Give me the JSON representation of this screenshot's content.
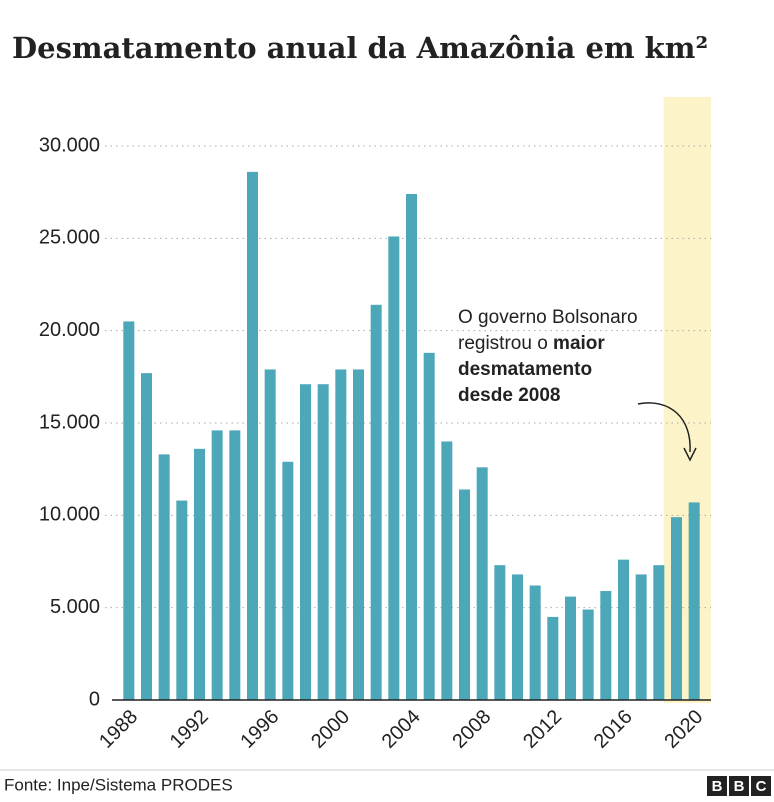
{
  "chart_data": {
    "type": "bar",
    "title": "Desmatamento anual da Amazônia em km²",
    "categories": [
      "1988",
      null,
      null,
      null,
      "1992",
      null,
      null,
      null,
      "1996",
      null,
      null,
      null,
      "2000",
      null,
      null,
      null,
      "2004",
      null,
      null,
      null,
      "2008",
      null,
      null,
      null,
      "2012",
      null,
      null,
      null,
      "2016",
      null,
      null,
      null,
      "2020"
    ],
    "values": [
      20500,
      17700,
      13300,
      10800,
      13600,
      14600,
      14600,
      28600,
      17900,
      12900,
      17100,
      17100,
      17900,
      17900,
      21400,
      25100,
      27400,
      18800,
      14000,
      11400,
      12600,
      7300,
      6800,
      6200,
      4500,
      5600,
      4900,
      5900,
      7600,
      6800,
      7300,
      9900,
      10700
    ],
    "color": "#4ca7b8",
    "highlight_color": "#fcf3c8",
    "ylim": [
      0,
      30000
    ],
    "yticks": [
      0,
      {
        "value": 5000,
        "label": "5.000"
      },
      {
        "value": 10000,
        "label": "10.000"
      },
      {
        "value": 15000,
        "label": "15.000"
      },
      {
        "value": 20000,
        "label": "20.000"
      },
      {
        "value": 25000,
        "label": "25.000"
      },
      {
        "value": 30000,
        "label": "30.000"
      }
    ],
    "grid": true,
    "annotation": [
      [
        {
          "text": "O governo Bolsonaro",
          "bold": false
        }
      ],
      [
        {
          "text": "registrou o ",
          "bold": false
        },
        {
          "text": "maior",
          "bold": true
        }
      ],
      [
        {
          "text": "desmatamento",
          "bold": true
        }
      ],
      [
        {
          "text": "desde 2008",
          "bold": true
        }
      ]
    ],
    "source": "Fonte: Inpe/Sistema PRODES",
    "logo": [
      "B",
      "B",
      "C"
    ]
  }
}
